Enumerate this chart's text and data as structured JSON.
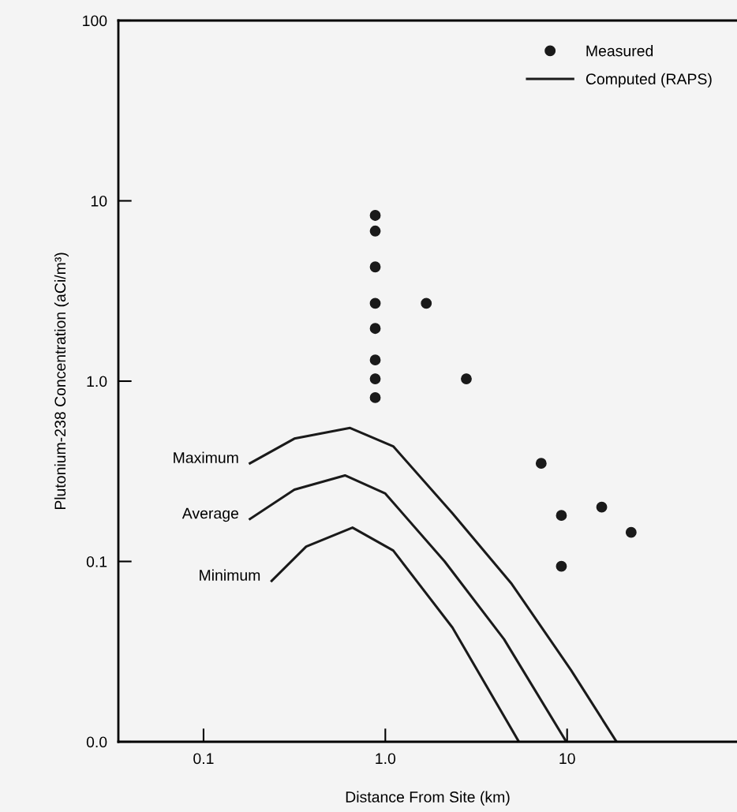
{
  "chart_data": {
    "type": "scatter",
    "xlabel": "Distance From Site (km)",
    "ylabel": "Plutonium-238 Concentration (aCi/m³)",
    "log": "xy",
    "xlim": [
      0.034,
      86
    ],
    "ylim": [
      0.01,
      100
    ],
    "xticks": [
      0.1,
      {
        "value": 1,
        "label": "1.0"
      },
      10
    ],
    "yticks": [
      {
        "value": 0.01,
        "label": "0.0"
      },
      0.1,
      {
        "value": 1,
        "label": "1.0"
      },
      10,
      100
    ],
    "grid": false,
    "legend": "top right",
    "series": [
      {
        "name": "Measured",
        "marker": "circle",
        "color": "#1a1a1a",
        "x": [
          0.88,
          0.88,
          0.88,
          0.88,
          0.88,
          0.88,
          0.88,
          0.88,
          1.68,
          2.79,
          7.2,
          9.3,
          15.5,
          22.5,
          9.3
        ],
        "values": [
          8.3,
          6.8,
          4.3,
          2.7,
          1.96,
          1.31,
          1.03,
          0.81,
          2.7,
          1.03,
          0.35,
          0.18,
          0.2,
          0.145,
          0.094
        ]
      },
      {
        "name": "Computed (RAPS)",
        "type": "line",
        "color": "#1a1a1a",
        "x": [
          0.18,
          0.316,
          0.64,
          1.105,
          2.34,
          4.96,
          10.5,
          18.7
        ],
        "values": [
          0.35,
          0.48,
          0.55,
          0.435,
          0.185,
          0.075,
          0.025,
          0.01
        ]
      },
      {
        "type": "line",
        "color": "#1a1a1a",
        "x": [
          0.18,
          0.316,
          0.6,
          1.0,
          2.12,
          4.5,
          9.9
        ],
        "values": [
          0.172,
          0.25,
          0.3,
          0.238,
          0.1,
          0.037,
          0.01
        ]
      },
      {
        "type": "line",
        "color": "#1a1a1a",
        "x": [
          0.237,
          0.367,
          0.66,
          1.105,
          2.34,
          5.43
        ],
        "values": [
          0.078,
          0.121,
          0.154,
          0.115,
          0.043,
          0.01
        ]
      }
    ],
    "annotations": [
      "Maximum",
      "Average",
      "Minimum"
    ]
  }
}
